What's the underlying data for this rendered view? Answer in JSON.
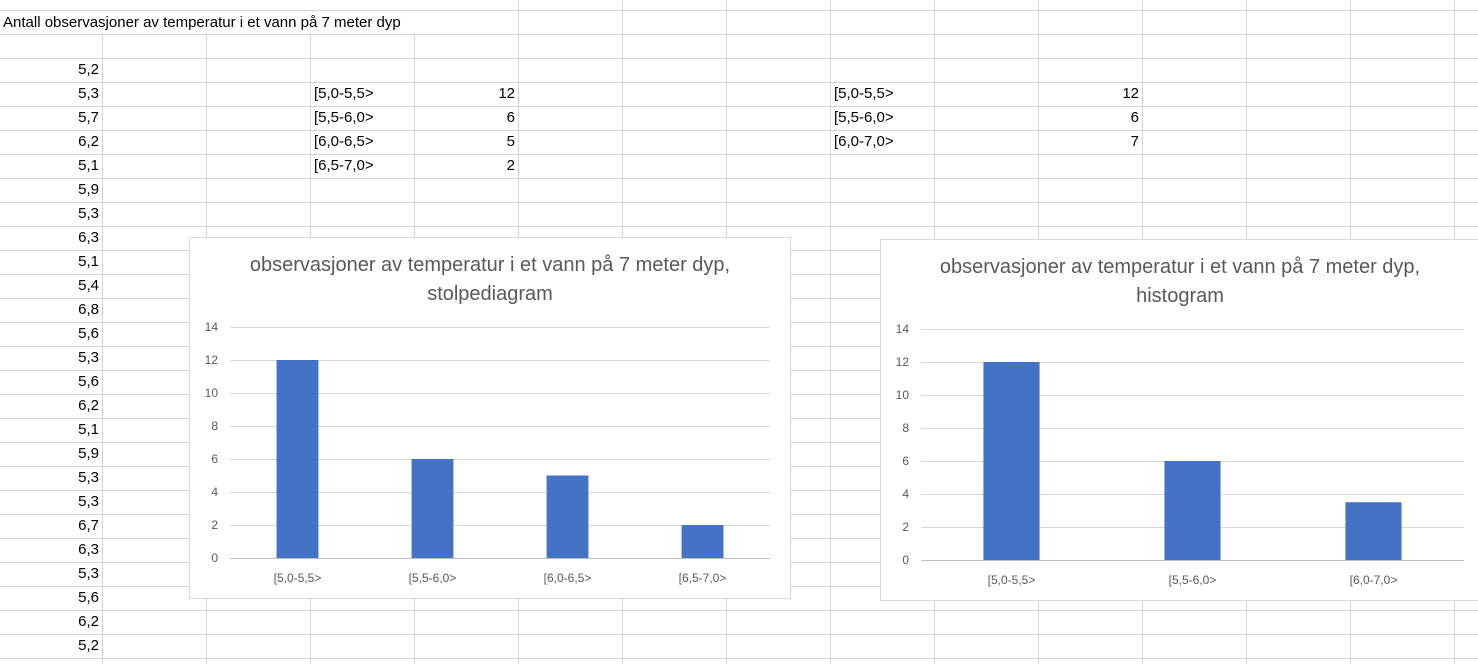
{
  "sheet": {
    "title": "Antall observasjoner av temperatur i et vann på 7 meter dyp",
    "observations": [
      "5,2",
      "5,3",
      "5,7",
      "6,2",
      "5,1",
      "5,9",
      "5,3",
      "6,3",
      "5,1",
      "5,4",
      "6,8",
      "5,6",
      "5,3",
      "5,6",
      "6,2",
      "5,1",
      "5,9",
      "5,3",
      "5,3",
      "6,7",
      "6,3",
      "5,3",
      "5,6",
      "6,2",
      "5,2"
    ],
    "table1": {
      "intervals": [
        "[5,0-5,5>",
        "[5,5-6,0>",
        "[6,0-6,5>",
        "[6,5-7,0>"
      ],
      "counts": [
        "12",
        "6",
        "5",
        "2"
      ]
    },
    "table2": {
      "intervals": [
        "[5,0-5,5>",
        "[5,5-6,0>",
        "[6,0-7,0>"
      ],
      "counts": [
        "12",
        "6",
        "7"
      ]
    }
  },
  "chart_data": [
    {
      "type": "bar",
      "title": "observasjoner av temperatur i et vann på 7 meter dyp, stolpediagram",
      "categories": [
        "[5,0-5,5>",
        "[5,5-6,0>",
        "[6,0-6,5>",
        "[6,5-7,0>"
      ],
      "values": [
        12,
        6,
        5,
        2
      ],
      "ylim": [
        0,
        14
      ],
      "yticks": [
        0,
        2,
        4,
        6,
        8,
        10,
        12,
        14
      ],
      "grid": true,
      "color": "#4472c4"
    },
    {
      "type": "bar",
      "title": "observasjoner av temperatur i et vann på 7 meter dyp, histogram",
      "categories": [
        "[5,0-5,5>",
        "[5,5-6,0>",
        "[6,0-7,0>"
      ],
      "values": [
        12,
        6,
        3.5
      ],
      "ylim": [
        0,
        14
      ],
      "yticks": [
        0,
        2,
        4,
        6,
        8,
        10,
        12,
        14
      ],
      "grid": true,
      "color": "#4472c4"
    }
  ]
}
